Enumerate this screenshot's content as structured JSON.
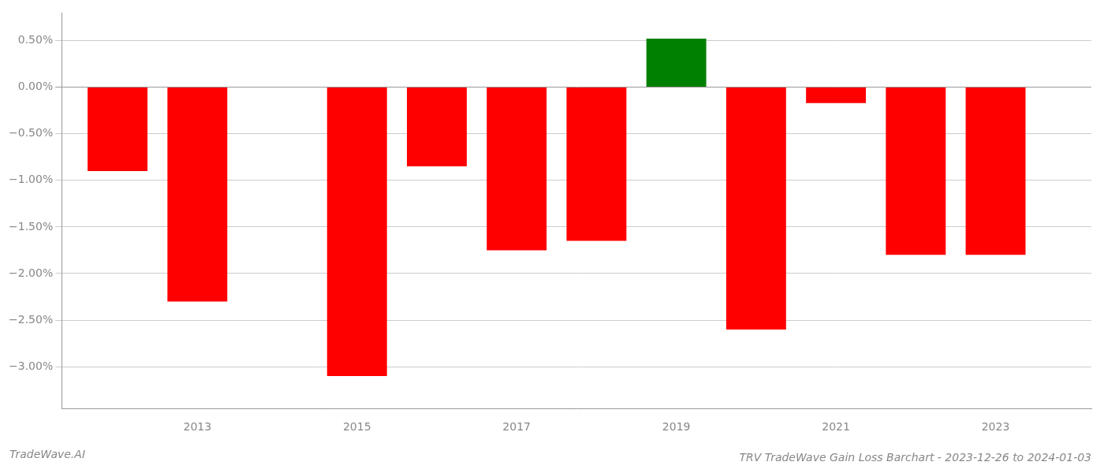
{
  "chart_data": {
    "type": "bar",
    "title": "TRV TradeWave Gain Loss Barchart - 2023-12-26 to 2024-01-03",
    "annotations": [
      {
        "text": "TradeWave.AI"
      }
    ],
    "x": [
      2012,
      2013,
      2015,
      2016,
      2017,
      2018,
      2019,
      2020,
      2021,
      2022,
      2023
    ],
    "values": [
      -0.9,
      -2.3,
      -3.1,
      -0.85,
      -1.75,
      -1.65,
      0.52,
      -2.6,
      -0.17,
      -1.8,
      -1.8
    ],
    "colors": [
      "red",
      "red",
      "red",
      "red",
      "red",
      "red",
      "green",
      "red",
      "red",
      "red",
      "red"
    ],
    "xlim": [
      2011.3,
      2024.2
    ],
    "xticks": [
      2013,
      2015,
      2017,
      2019,
      2021,
      2023
    ],
    "ylim": [
      -3.45,
      0.8
    ],
    "yticks": [
      {
        "value": 0.5,
        "label": "0.50%"
      },
      {
        "value": 0.0,
        "label": "0.00%"
      },
      {
        "value": -0.5,
        "label": "−0.50%"
      },
      {
        "value": -1.0,
        "label": "−1.00%"
      },
      {
        "value": -1.5,
        "label": "−1.50%"
      },
      {
        "value": -2.0,
        "label": "−2.00%"
      },
      {
        "value": -2.5,
        "label": "−2.50%"
      },
      {
        "value": -3.0,
        "label": "−3.00%"
      }
    ],
    "grid": "y"
  }
}
